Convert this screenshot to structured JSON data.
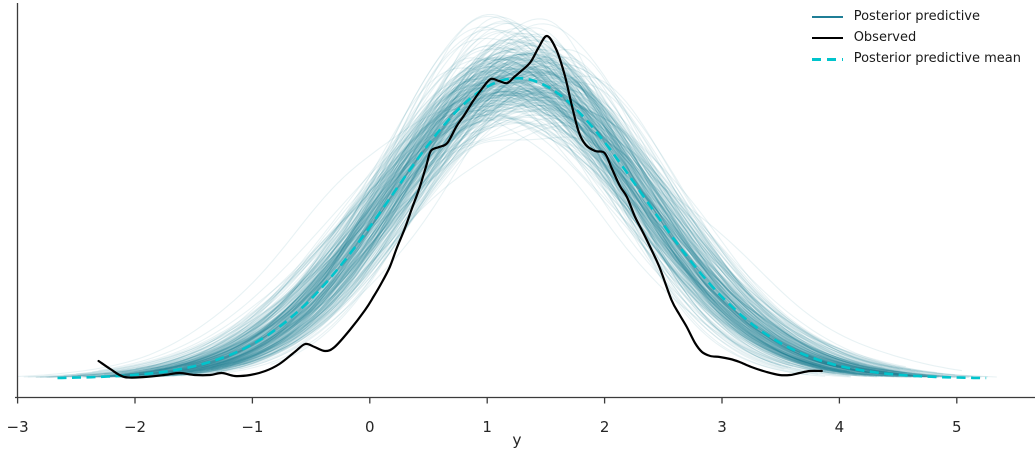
{
  "figure": {
    "kind": "posterior-predictive-check-plot",
    "background": "#ffffff"
  },
  "legend": {
    "position": "upper right",
    "items": [
      {
        "label": "Posterior predictive",
        "color": "#1f7e96",
        "style": "solid"
      },
      {
        "label": "Observed",
        "color": "#000000",
        "style": "solid"
      },
      {
        "label": "Posterior predictive mean",
        "color": "#00c4cc",
        "style": "dashed"
      }
    ]
  },
  "axis": {
    "xlabel": "y",
    "tick_labels": [
      "−3",
      "−2",
      "−1",
      "0",
      "1",
      "2",
      "3",
      "4",
      "5"
    ],
    "tick_values": [
      -3,
      -2,
      -1,
      0,
      1,
      2,
      3,
      4,
      5
    ],
    "spine_color": "#3b3b3b",
    "text_color": "#262626"
  },
  "chart_data": {
    "type": "line",
    "subtype": "kde-ensemble-posterior-predictive-check",
    "title": "",
    "xlabel": "y",
    "ylabel": "",
    "xlim": [
      -3.05,
      5.68
    ],
    "ylim_density": [
      0,
      0.47
    ],
    "x_ticks": [
      -3,
      -2,
      -1,
      0,
      1,
      2,
      3,
      4,
      5
    ],
    "grid": false,
    "legend_position": "upper right",
    "series": [
      {
        "name": "Posterior predictive",
        "kind": "kde-ensemble",
        "color": "#1f7e96",
        "opacity": 0.1,
        "line_width": 1.1,
        "n_curves": 300,
        "mu_mean": 1.25,
        "mu_sd": 0.15,
        "sigma_mean": 1.08,
        "sigma_sd": 0.075,
        "sigma_clip": [
          0.89,
          1.32
        ],
        "x_cut_sigmas": [
          2.45,
          3.3
        ],
        "seed": 11
      },
      {
        "name": "Observed",
        "kind": "kde",
        "color": "#000000",
        "line_width": 2.2,
        "points": [
          [
            -2.31,
            0.0215
          ],
          [
            -2.21,
            0.0117
          ],
          [
            -2.09,
            0.0018
          ],
          [
            -1.92,
            0.0018
          ],
          [
            -1.75,
            0.0043
          ],
          [
            -1.62,
            0.0068
          ],
          [
            -1.49,
            0.0043
          ],
          [
            -1.36,
            0.0043
          ],
          [
            -1.26,
            0.0068
          ],
          [
            -1.15,
            0.0031
          ],
          [
            -1.02,
            0.0043
          ],
          [
            -0.89,
            0.0092
          ],
          [
            -0.77,
            0.0178
          ],
          [
            -0.64,
            0.0326
          ],
          [
            -0.55,
            0.0424
          ],
          [
            -0.47,
            0.0387
          ],
          [
            -0.38,
            0.0338
          ],
          [
            -0.3,
            0.0387
          ],
          [
            -0.17,
            0.0597
          ],
          [
            -0.04,
            0.0843
          ],
          [
            0.03,
            0.1003
          ],
          [
            0.1,
            0.1175
          ],
          [
            0.17,
            0.1372
          ],
          [
            0.23,
            0.1605
          ],
          [
            0.3,
            0.1851
          ],
          [
            0.36,
            0.2097
          ],
          [
            0.42,
            0.2331
          ],
          [
            0.48,
            0.2614
          ],
          [
            0.52,
            0.2798
          ],
          [
            0.59,
            0.2847
          ],
          [
            0.66,
            0.2897
          ],
          [
            0.74,
            0.3106
          ],
          [
            0.8,
            0.3229
          ],
          [
            0.88,
            0.3413
          ],
          [
            0.96,
            0.3573
          ],
          [
            1.03,
            0.3684
          ],
          [
            1.1,
            0.3659
          ],
          [
            1.17,
            0.3634
          ],
          [
            1.23,
            0.3708
          ],
          [
            1.29,
            0.3782
          ],
          [
            1.37,
            0.3893
          ],
          [
            1.44,
            0.4077
          ],
          [
            1.51,
            0.4213
          ],
          [
            1.59,
            0.404
          ],
          [
            1.66,
            0.3733
          ],
          [
            1.72,
            0.3364
          ],
          [
            1.78,
            0.3032
          ],
          [
            1.84,
            0.2872
          ],
          [
            1.92,
            0.2798
          ],
          [
            2.0,
            0.2774
          ],
          [
            2.06,
            0.2589
          ],
          [
            2.13,
            0.2368
          ],
          [
            2.19,
            0.2233
          ],
          [
            2.26,
            0.1987
          ],
          [
            2.33,
            0.179
          ],
          [
            2.4,
            0.1581
          ],
          [
            2.47,
            0.1359
          ],
          [
            2.57,
            0.0966
          ],
          [
            2.64,
            0.0781
          ],
          [
            2.7,
            0.0634
          ],
          [
            2.77,
            0.0437
          ],
          [
            2.83,
            0.0326
          ],
          [
            2.9,
            0.0277
          ],
          [
            2.98,
            0.0264
          ],
          [
            3.07,
            0.024
          ],
          [
            3.15,
            0.0203
          ],
          [
            3.25,
            0.0141
          ],
          [
            3.38,
            0.008
          ],
          [
            3.49,
            0.0043
          ],
          [
            3.58,
            0.0043
          ],
          [
            3.66,
            0.0068
          ],
          [
            3.75,
            0.0092
          ],
          [
            3.85,
            0.0092
          ]
        ]
      },
      {
        "name": "Posterior predictive mean",
        "kind": "ensemble-mean",
        "color": "#00c4cc",
        "line_width": 2.6,
        "dash": [
          9,
          5.5
        ],
        "x_range": [
          -2.66,
          5.25
        ]
      }
    ]
  }
}
